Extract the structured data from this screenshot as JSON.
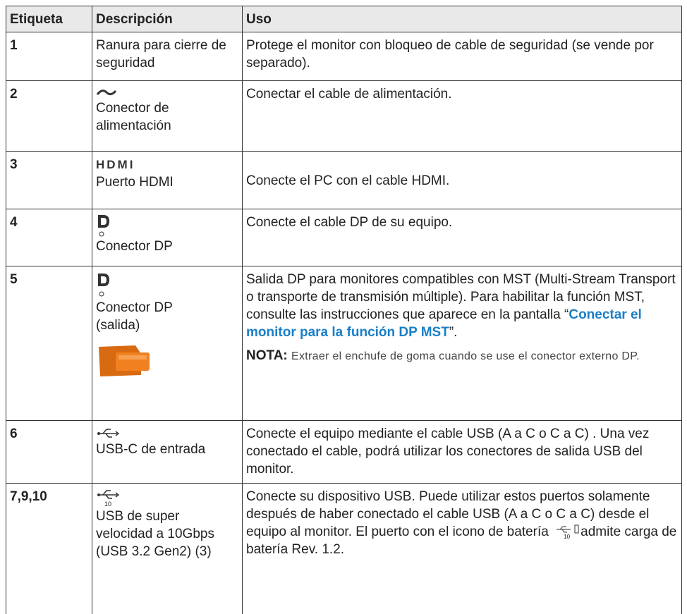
{
  "table": {
    "header": [
      "Etiqueta",
      "Descripción",
      "Uso"
    ],
    "rows": [
      {
        "label": "1",
        "description": "Ranura para cierre de seguridad",
        "usage": "Protege el monitor con bloqueo de cable de seguridad (se vende por separado)."
      },
      {
        "label": "2",
        "description": "Conector de alimentación",
        "usage": "Conectar el cable de alimentación."
      },
      {
        "label": "3",
        "logo": "HDMI",
        "description": "Puerto HDMI",
        "usage": "Conecte el PC con el cable HDMI."
      },
      {
        "label": "4",
        "description": "Conector DP",
        "usage": "Conecte el cable DP de su equipo."
      },
      {
        "label": "5",
        "description": "Conector DP (salida)",
        "usage": {
          "before": "Salida DP para monitores compatibles con MST (Multi-Stream Transport o transporte de transmisión múltiple). Para habilitar la función MST, consulte las instrucciones que aparece en la pantalla “",
          "link": "Conectar el monitor para la función DP MST",
          "after": "”.",
          "note_label": "NOTA:",
          "note": "Extraer el enchufe de goma cuando se use el conector externo DP."
        }
      },
      {
        "label": "6",
        "description": "USB-C de entrada",
        "usage": "Conecte el equipo mediante el cable USB (A a C o C a C) . Una vez conectado el cable, podrá utilizar los conectores de salida USB del monitor."
      },
      {
        "label": "7,9,10",
        "icon_text": "10",
        "description": "USB de super velocidad a 10Gbps (USB 3.2 Gen2) (3)",
        "usage": {
          "before": "Conecte su dispositivo USB. Puede utilizar estos puertos solamente después de haber conectado el cable USB (A a C o C a C) desde el equipo al monitor. El puerto con el icono de batería",
          "icon_text": "10",
          "after": "admite carga de batería Rev. 1.2."
        }
      }
    ]
  }
}
